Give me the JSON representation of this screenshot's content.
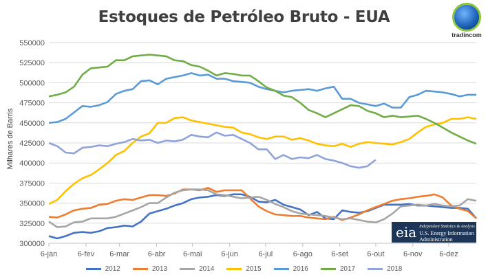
{
  "chart_data": {
    "type": "line",
    "title": "Estoques de Petróleo Bruto - EUA",
    "ylabel": "Milhares de Barris",
    "xlabel": "",
    "ylim": [
      300000,
      550000
    ],
    "yticks": [
      300000,
      325000,
      350000,
      375000,
      400000,
      425000,
      450000,
      475000,
      500000,
      525000,
      550000
    ],
    "ytick_labels": [
      "300000",
      "325000",
      "350000",
      "375000",
      "400000",
      "425000",
      "450000",
      "475000",
      "500000",
      "525000",
      "550000"
    ],
    "xticks_day_of_year": [
      0,
      31,
      59,
      90,
      120,
      151,
      181,
      212,
      243,
      273,
      304,
      334
    ],
    "xtick_labels": [
      "6-jan",
      "6-fev",
      "6-mar",
      "6-abr",
      "6-mai",
      "6-jun",
      "6-jul",
      "6-ago",
      "6-set",
      "6-out",
      "6-nov",
      "6-dez"
    ],
    "x_step_days": 7,
    "x_range_days": [
      0,
      357
    ],
    "grid": "horizontal",
    "legend_position": "bottom",
    "value_unit": "thousand barrels",
    "series": [
      {
        "name": "2012",
        "color": "#4472C4",
        "values": [
          309,
          306,
          309,
          313,
          314,
          313,
          315,
          319,
          320,
          322,
          321,
          327,
          337,
          340,
          343,
          347,
          350,
          355,
          357,
          358,
          360,
          359,
          361,
          361,
          358,
          352,
          351,
          354,
          348,
          345,
          342,
          335,
          339,
          331,
          330,
          341,
          339,
          338,
          340,
          344,
          348,
          348,
          348,
          349,
          347,
          347,
          346,
          345,
          344,
          344,
          343,
          331
        ]
      },
      {
        "name": "2013",
        "color": "#ED7D31",
        "values": [
          333,
          332,
          336,
          341,
          343,
          344,
          348,
          349,
          353,
          355,
          354,
          357,
          360,
          360,
          359,
          362,
          367,
          367,
          366,
          369,
          364,
          366,
          366,
          366,
          356,
          346,
          340,
          336,
          335,
          334,
          334,
          332,
          331,
          330,
          333,
          329,
          332,
          336,
          341,
          345,
          349,
          353,
          355,
          356,
          358,
          359,
          361,
          357,
          347,
          343,
          340,
          331
        ]
      },
      {
        "name": "2014",
        "color": "#A5A5A5",
        "values": [
          327,
          320,
          321,
          326,
          327,
          331,
          331,
          331,
          333,
          337,
          341,
          345,
          350,
          350,
          357,
          363,
          366,
          367,
          367,
          366,
          361,
          360,
          358,
          356,
          357,
          358,
          354,
          349,
          345,
          340,
          337,
          336,
          335,
          334,
          332,
          330,
          331,
          329,
          327,
          326,
          330,
          337,
          346,
          347,
          348,
          347,
          349,
          347,
          346,
          347,
          355,
          353
        ]
      },
      {
        "name": "2015",
        "color": "#FFC000",
        "values": [
          349,
          354,
          365,
          374,
          381,
          385,
          392,
          400,
          410,
          415,
          425,
          433,
          437,
          450,
          450,
          456,
          457,
          453,
          451,
          449,
          447,
          445,
          444,
          438,
          436,
          432,
          430,
          433,
          433,
          429,
          431,
          428,
          424,
          422,
          421,
          424,
          420,
          424,
          426,
          425,
          424,
          423,
          426,
          430,
          438,
          445,
          448,
          450,
          455,
          455,
          457,
          455
        ]
      },
      {
        "name": "2016",
        "color": "#5B9BD5",
        "values": [
          450,
          451,
          455,
          463,
          471,
          470,
          472,
          476,
          486,
          490,
          492,
          502,
          503,
          498,
          505,
          507,
          509,
          512,
          509,
          510,
          505,
          505,
          502,
          501,
          500,
          495,
          492,
          490,
          488,
          490,
          491,
          492,
          490,
          493,
          495,
          480,
          480,
          475,
          473,
          471,
          474,
          469,
          469,
          482,
          485,
          490,
          489,
          488,
          486,
          483,
          485,
          485
        ]
      },
      {
        "name": "2017",
        "color": "#70AD47",
        "values": [
          483,
          485,
          488,
          495,
          510,
          518,
          519,
          520,
          528,
          528,
          533,
          534,
          535,
          534,
          533,
          528,
          527,
          522,
          520,
          515,
          509,
          512,
          511,
          509,
          509,
          502,
          494,
          490,
          484,
          482,
          475,
          466,
          462,
          457,
          462,
          467,
          472,
          471,
          465,
          462,
          457,
          459,
          457,
          458,
          459,
          455,
          450,
          444,
          438,
          433,
          428,
          424
        ]
      },
      {
        "name": "2018",
        "color": "#8FA3DA",
        "values": [
          425,
          421,
          413,
          412,
          419,
          420,
          422,
          421,
          424,
          426,
          430,
          428,
          429,
          425,
          428,
          427,
          429,
          435,
          433,
          432,
          438,
          434,
          435,
          430,
          425,
          417,
          417,
          405,
          410,
          405,
          407,
          406,
          410,
          405,
          403,
          400,
          396,
          394,
          396,
          404
        ]
      }
    ]
  },
  "logos": {
    "brand": "tradincom",
    "eia_mark": "eia",
    "eia_tagline": "Independent Statistics & Analysis",
    "eia_name_line1": "U.S. Energy Information",
    "eia_name_line2": "Administration"
  }
}
